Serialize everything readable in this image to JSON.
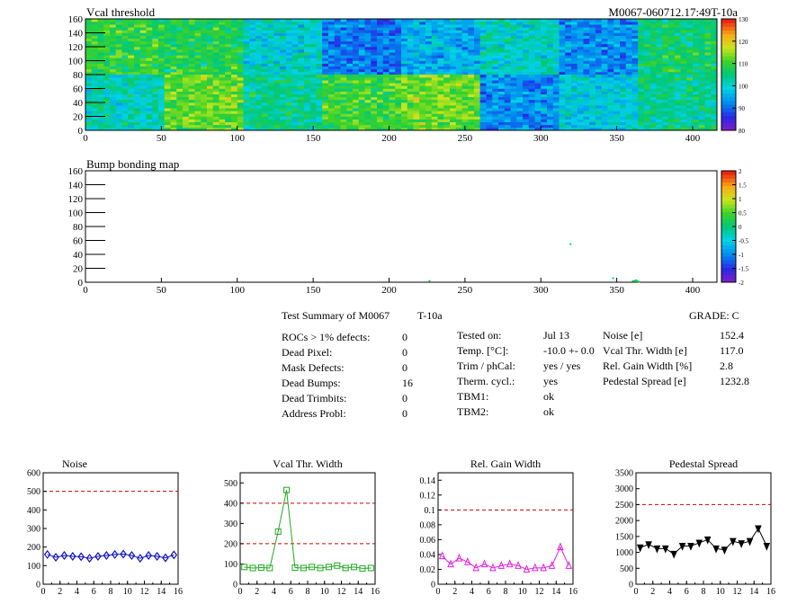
{
  "chart_data": [
    {
      "type": "heatmap",
      "title": "Vcal threshold",
      "id_label": "M0067-060712.17:49T-10a",
      "xlim": [
        0,
        416
      ],
      "ylim": [
        0,
        160
      ],
      "xticks": [
        "0",
        "50",
        "100",
        "150",
        "200",
        "250",
        "300",
        "350",
        "400"
      ],
      "yticks": [
        "0",
        "20",
        "40",
        "60",
        "80",
        "100",
        "120",
        "140",
        "160"
      ],
      "colorbar": {
        "range": [
          80,
          130
        ],
        "ticks": [
          "80",
          "90",
          "100",
          "110",
          "120",
          "130"
        ]
      },
      "roc_grid": {
        "columns": 8,
        "rows": 2,
        "col_width": 52,
        "row_height": 80
      },
      "roc_means_top_row": [
        109,
        108,
        100,
        91,
        96,
        101,
        93,
        106
      ],
      "roc_means_bottom_row": [
        102,
        112,
        104,
        110,
        113,
        93,
        99,
        104
      ]
    },
    {
      "type": "heatmap",
      "title": "Bump bonding map",
      "xlim": [
        0,
        416
      ],
      "ylim": [
        0,
        160
      ],
      "xticks": [
        "0",
        "50",
        "100",
        "150",
        "200",
        "250",
        "300",
        "350",
        "400"
      ],
      "yticks": [
        "0",
        "20",
        "40",
        "60",
        "80",
        "100",
        "120",
        "140",
        "160"
      ],
      "colorbar": {
        "range": [
          -2,
          2
        ],
        "ticks": [
          "-2",
          "-1.5",
          "-1",
          "-0.5",
          "0",
          "0.5",
          "1",
          "1.5",
          "2"
        ]
      },
      "marked_pixels": [
        {
          "x": 319,
          "y": 55,
          "value": -0.3
        },
        {
          "x": 226,
          "y": 2,
          "value": 0.1
        },
        {
          "x": 347,
          "y": 6,
          "value": -0.6
        },
        {
          "x": 360,
          "y": 2,
          "value": 0.3
        },
        {
          "x": 361,
          "y": 2,
          "value": 0.2
        },
        {
          "x": 362,
          "y": 3,
          "value": 0.0
        },
        {
          "x": 363,
          "y": 2,
          "value": 0.4
        },
        {
          "x": 364,
          "y": 1,
          "value": 0.2
        }
      ]
    },
    {
      "type": "line",
      "title": "Noise",
      "x": [
        0,
        1,
        2,
        3,
        4,
        5,
        6,
        7,
        8,
        9,
        10,
        11,
        12,
        13,
        14,
        15
      ],
      "values": [
        160,
        145,
        155,
        150,
        148,
        140,
        150,
        155,
        160,
        162,
        155,
        140,
        155,
        150,
        142,
        158
      ],
      "xlim": [
        0,
        16
      ],
      "ylim": [
        0,
        600
      ],
      "threshold": 500,
      "yticks": [
        0,
        100,
        200,
        300,
        400,
        500,
        600
      ],
      "ytick_labels": [
        "0",
        "100",
        "200",
        "300",
        "400",
        "500",
        "600"
      ],
      "xticks": [
        0,
        2,
        4,
        6,
        8,
        10,
        12,
        14,
        16
      ],
      "xtick_labels": [
        "0",
        "2",
        "4",
        "6",
        "8",
        "10",
        "12",
        "14",
        "16"
      ],
      "color": "#1010c0",
      "marker": "diamond"
    },
    {
      "type": "line",
      "title": "Vcal Thr. Width",
      "x": [
        0,
        1,
        2,
        3,
        4,
        5,
        6,
        7,
        8,
        9,
        10,
        11,
        12,
        13,
        14,
        15
      ],
      "values": [
        85,
        80,
        82,
        80,
        260,
        465,
        82,
        80,
        85,
        80,
        85,
        92,
        80,
        85,
        78,
        80
      ],
      "xlim": [
        0,
        16
      ],
      "ylim": [
        0,
        550
      ],
      "thresholds": [
        400,
        200
      ],
      "yticks": [
        0,
        100,
        200,
        300,
        400,
        500
      ],
      "ytick_labels": [
        "0",
        "100",
        "200",
        "300",
        "400",
        "500"
      ],
      "xticks": [
        0,
        2,
        4,
        6,
        8,
        10,
        12,
        14,
        16
      ],
      "xtick_labels": [
        "0",
        "2",
        "4",
        "6",
        "8",
        "10",
        "12",
        "14",
        "16"
      ],
      "color": "#22aa22",
      "marker": "square"
    },
    {
      "type": "line",
      "title": "Rel. Gain Width",
      "x": [
        0,
        1,
        2,
        3,
        4,
        5,
        6,
        7,
        8,
        9,
        10,
        11,
        12,
        13,
        14,
        15
      ],
      "values": [
        0.038,
        0.027,
        0.035,
        0.03,
        0.022,
        0.027,
        0.022,
        0.025,
        0.027,
        0.025,
        0.02,
        0.022,
        0.022,
        0.025,
        0.05,
        0.025
      ],
      "xlim": [
        0,
        16
      ],
      "ylim": [
        0,
        0.15
      ],
      "threshold": 0.1,
      "yticks": [
        0,
        0.02,
        0.04,
        0.06,
        0.08,
        0.1,
        0.12,
        0.14
      ],
      "ytick_labels": [
        "0",
        "0.02",
        "0.04",
        "0.06",
        "0.08",
        "0.1",
        "0.12",
        "0.14"
      ],
      "xticks": [
        0,
        2,
        4,
        6,
        8,
        10,
        12,
        14,
        16
      ],
      "xtick_labels": [
        "0",
        "2",
        "4",
        "6",
        "8",
        "10",
        "12",
        "14",
        "16"
      ],
      "color": "#e020e0",
      "marker": "triangle"
    },
    {
      "type": "line",
      "title": "Pedestal Spread",
      "x": [
        0,
        1,
        2,
        3,
        4,
        5,
        6,
        7,
        8,
        9,
        10,
        11,
        12,
        13,
        14,
        15
      ],
      "values": [
        1150,
        1250,
        1120,
        1120,
        950,
        1200,
        1200,
        1300,
        1400,
        1120,
        1080,
        1350,
        1280,
        1350,
        1750,
        1200
      ],
      "xlim": [
        0,
        16
      ],
      "ylim": [
        0,
        3500
      ],
      "threshold": 2500,
      "yticks": [
        0,
        500,
        1000,
        1500,
        2000,
        2500,
        3000,
        3500
      ],
      "ytick_labels": [
        "0",
        "500",
        "1000",
        "1500",
        "2000",
        "2500",
        "3000",
        "3500"
      ],
      "xticks": [
        0,
        2,
        4,
        6,
        8,
        10,
        12,
        14,
        16
      ],
      "xtick_labels": [
        "0",
        "2",
        "4",
        "6",
        "8",
        "10",
        "12",
        "14",
        "16"
      ],
      "color": "#000000",
      "marker": "triangle-down"
    }
  ],
  "summary": {
    "title": "Test Summary of M0067",
    "temp_label": "T-10a",
    "grade": "GRADE:  C",
    "col1": [
      {
        "label": "ROCs > 1% defects:",
        "value": "0"
      },
      {
        "label": "Dead Pixel:",
        "value": "0"
      },
      {
        "label": "Mask Defects:",
        "value": "0"
      },
      {
        "label": "Dead Bumps:",
        "value": "16"
      },
      {
        "label": "Dead Trimbits:",
        "value": "0"
      },
      {
        "label": "Address Probl:",
        "value": "0"
      }
    ],
    "col2": [
      {
        "label": "Tested on:",
        "value": "Jul 13"
      },
      {
        "label": "Temp. [°C]:",
        "value": "-10.0 +- 0.0"
      },
      {
        "label": "Trim / phCal:",
        "value": "yes / yes"
      },
      {
        "label": "Therm. cycl.:",
        "value": "yes"
      },
      {
        "label": "TBM1:",
        "value": "ok"
      },
      {
        "label": "TBM2:",
        "value": "ok"
      }
    ],
    "col3": [
      {
        "label": "Noise [e]",
        "value": "152.4"
      },
      {
        "label": "Vcal Thr. Width [e]",
        "value": "117.0"
      },
      {
        "label": "Rel. Gain Width [%]",
        "value": "2.8"
      },
      {
        "label": "Pedestal Spread [e]",
        "value": "1232.8"
      }
    ]
  }
}
